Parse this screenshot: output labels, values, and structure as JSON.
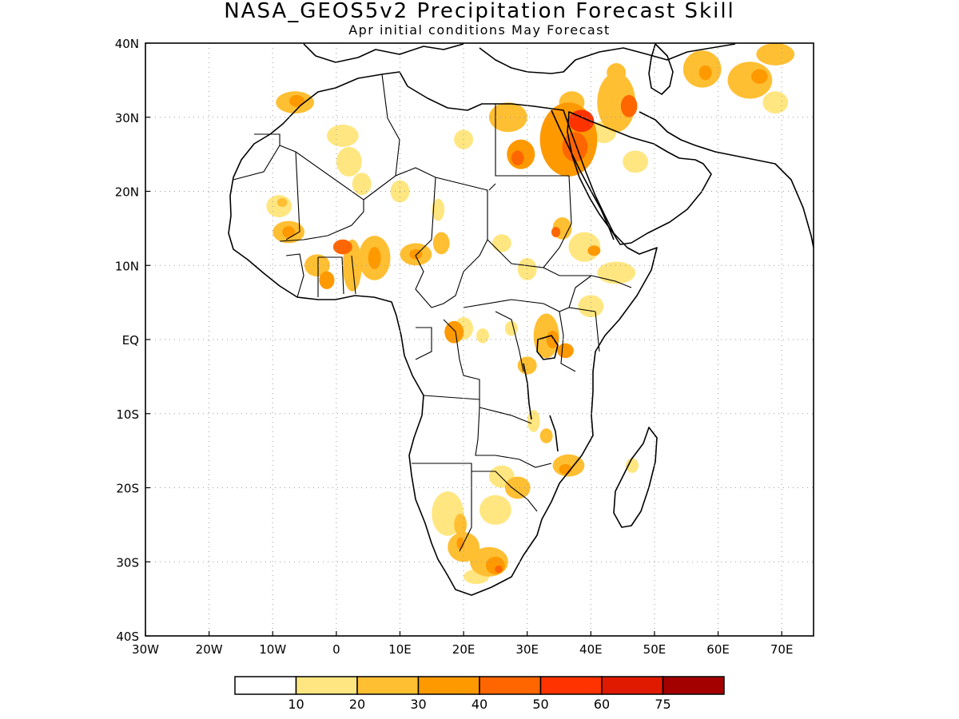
{
  "title": "NASA_GEOS5v2 Precipitation Forecast Skill",
  "subtitle": "Apr initial conditions   May Forecast",
  "map": {
    "lon_range": [
      -30,
      75
    ],
    "lat_range": [
      -40,
      40
    ],
    "x_ticks": [
      {
        "value": -30,
        "label": "30W"
      },
      {
        "value": -20,
        "label": "20W"
      },
      {
        "value": -10,
        "label": "10W"
      },
      {
        "value": 0,
        "label": "0"
      },
      {
        "value": 10,
        "label": "10E"
      },
      {
        "value": 20,
        "label": "20E"
      },
      {
        "value": 30,
        "label": "30E"
      },
      {
        "value": 40,
        "label": "40E"
      },
      {
        "value": 50,
        "label": "50E"
      },
      {
        "value": 60,
        "label": "60E"
      },
      {
        "value": 70,
        "label": "70E"
      }
    ],
    "y_ticks": [
      {
        "value": 40,
        "label": "40N"
      },
      {
        "value": 30,
        "label": "30N"
      },
      {
        "value": 20,
        "label": "20N"
      },
      {
        "value": 10,
        "label": "10N"
      },
      {
        "value": 0,
        "label": "EQ"
      },
      {
        "value": -10,
        "label": "10S"
      },
      {
        "value": -20,
        "label": "20S"
      },
      {
        "value": -30,
        "label": "30S"
      },
      {
        "value": -40,
        "label": "40S"
      }
    ],
    "grid": "dotted"
  },
  "colorbar": {
    "colors": [
      "#ffffff",
      "#ffe680",
      "#ffbf33",
      "#ff9900",
      "#ff6600",
      "#ff3300",
      "#e01a00",
      "#a30000"
    ],
    "labels": [
      "10",
      "20",
      "30",
      "40",
      "50",
      "60",
      "75"
    ]
  },
  "skill_blobs": [
    {
      "lon": 36.5,
      "lat": 27,
      "rx": 4.5,
      "ry": 5,
      "level": 3
    },
    {
      "lon": 38.5,
      "lat": 29.5,
      "rx": 2,
      "ry": 1.5,
      "level": 5
    },
    {
      "lon": 37.5,
      "lat": 26,
      "rx": 2,
      "ry": 2,
      "level": 4
    },
    {
      "lon": 29,
      "lat": 25,
      "rx": 2.2,
      "ry": 2,
      "level": 3
    },
    {
      "lon": 28.5,
      "lat": 24.5,
      "rx": 1,
      "ry": 1,
      "level": 4
    },
    {
      "lon": 27,
      "lat": 30,
      "rx": 3,
      "ry": 2,
      "level": 2
    },
    {
      "lon": 20,
      "lat": 27,
      "rx": 1.5,
      "ry": 1.3,
      "level": 1
    },
    {
      "lon": 37,
      "lat": 32,
      "rx": 2,
      "ry": 1.5,
      "level": 2
    },
    {
      "lon": 44,
      "lat": 32,
      "rx": 3,
      "ry": 4,
      "level": 2
    },
    {
      "lon": 46,
      "lat": 31.5,
      "rx": 1.3,
      "ry": 1.5,
      "level": 4
    },
    {
      "lon": 44,
      "lat": 36,
      "rx": 1.5,
      "ry": 1.3,
      "level": 2
    },
    {
      "lon": 42,
      "lat": 28,
      "rx": 2,
      "ry": 1.5,
      "level": 1
    },
    {
      "lon": 47,
      "lat": 24,
      "rx": 2,
      "ry": 1.5,
      "level": 1
    },
    {
      "lon": 57.5,
      "lat": 36.5,
      "rx": 3,
      "ry": 2.5,
      "level": 2
    },
    {
      "lon": 58,
      "lat": 36,
      "rx": 1,
      "ry": 1,
      "level": 3
    },
    {
      "lon": 65,
      "lat": 35,
      "rx": 3.5,
      "ry": 2.5,
      "level": 2
    },
    {
      "lon": 66.5,
      "lat": 35.5,
      "rx": 1.3,
      "ry": 1,
      "level": 3
    },
    {
      "lon": 69,
      "lat": 38.5,
      "rx": 3,
      "ry": 1.5,
      "level": 2
    },
    {
      "lon": 69,
      "lat": 32,
      "rx": 2,
      "ry": 1.5,
      "level": 1
    },
    {
      "lon": -6.5,
      "lat": 32,
      "rx": 3,
      "ry": 1.5,
      "level": 2
    },
    {
      "lon": -6.2,
      "lat": 32.2,
      "rx": 1.2,
      "ry": 0.8,
      "level": 3
    },
    {
      "lon": 1,
      "lat": 27.5,
      "rx": 2.5,
      "ry": 1.5,
      "level": 1
    },
    {
      "lon": 2,
      "lat": 24,
      "rx": 2,
      "ry": 2,
      "level": 1
    },
    {
      "lon": 4,
      "lat": 21,
      "rx": 1.5,
      "ry": 1.5,
      "level": 1
    },
    {
      "lon": -9,
      "lat": 18,
      "rx": 2,
      "ry": 1.5,
      "level": 1
    },
    {
      "lon": -8.5,
      "lat": 18.5,
      "rx": 0.8,
      "ry": 0.6,
      "level": 2
    },
    {
      "lon": -7.5,
      "lat": 14.5,
      "rx": 2.5,
      "ry": 1.5,
      "level": 2
    },
    {
      "lon": -7.5,
      "lat": 14.5,
      "rx": 1,
      "ry": 0.8,
      "level": 3
    },
    {
      "lon": -3,
      "lat": 10,
      "rx": 2,
      "ry": 1.5,
      "level": 2
    },
    {
      "lon": -1.5,
      "lat": 8,
      "rx": 1.2,
      "ry": 1.2,
      "level": 3
    },
    {
      "lon": 1,
      "lat": 12.5,
      "rx": 1.5,
      "ry": 1,
      "level": 4
    },
    {
      "lon": 2.5,
      "lat": 10,
      "rx": 1.5,
      "ry": 3.5,
      "level": 2
    },
    {
      "lon": 6,
      "lat": 11,
      "rx": 2.5,
      "ry": 3,
      "level": 2
    },
    {
      "lon": 6,
      "lat": 11,
      "rx": 1,
      "ry": 1.5,
      "level": 3
    },
    {
      "lon": 12.5,
      "lat": 11.5,
      "rx": 2.5,
      "ry": 1.5,
      "level": 2
    },
    {
      "lon": 12.5,
      "lat": 11.5,
      "rx": 1,
      "ry": 0.7,
      "level": 3
    },
    {
      "lon": 16.5,
      "lat": 13,
      "rx": 1.3,
      "ry": 1.5,
      "level": 2
    },
    {
      "lon": 16,
      "lat": 17.5,
      "rx": 1,
      "ry": 1.5,
      "level": 1
    },
    {
      "lon": 10,
      "lat": 20,
      "rx": 1.5,
      "ry": 1.5,
      "level": 1
    },
    {
      "lon": 26,
      "lat": 13,
      "rx": 1.5,
      "ry": 1.2,
      "level": 1
    },
    {
      "lon": 30,
      "lat": 9.5,
      "rx": 1.5,
      "ry": 1.5,
      "level": 1
    },
    {
      "lon": 35.5,
      "lat": 15,
      "rx": 1.5,
      "ry": 1.5,
      "level": 2
    },
    {
      "lon": 34.5,
      "lat": 14.5,
      "rx": 0.7,
      "ry": 0.7,
      "level": 4
    },
    {
      "lon": 39,
      "lat": 12.5,
      "rx": 2.5,
      "ry": 2,
      "level": 1
    },
    {
      "lon": 40.5,
      "lat": 12,
      "rx": 1,
      "ry": 0.7,
      "level": 3
    },
    {
      "lon": 44,
      "lat": 9,
      "rx": 3,
      "ry": 1.5,
      "level": 1
    },
    {
      "lon": 40,
      "lat": 4.5,
      "rx": 2,
      "ry": 1.5,
      "level": 1
    },
    {
      "lon": 33,
      "lat": 0.5,
      "rx": 2,
      "ry": 3,
      "level": 2
    },
    {
      "lon": 34,
      "lat": 0,
      "rx": 1,
      "ry": 1.2,
      "level": 3
    },
    {
      "lon": 36,
      "lat": -1.5,
      "rx": 1.3,
      "ry": 1,
      "level": 3
    },
    {
      "lon": 30,
      "lat": -3.5,
      "rx": 1.5,
      "ry": 1.2,
      "level": 2
    },
    {
      "lon": 18.5,
      "lat": 1,
      "rx": 1.5,
      "ry": 1.5,
      "level": 3
    },
    {
      "lon": 20,
      "lat": 1.5,
      "rx": 1.5,
      "ry": 1.5,
      "level": 1
    },
    {
      "lon": 23,
      "lat": 0.5,
      "rx": 1,
      "ry": 1,
      "level": 1
    },
    {
      "lon": 27.5,
      "lat": 1.5,
      "rx": 1,
      "ry": 1,
      "level": 1
    },
    {
      "lon": 31,
      "lat": -11,
      "rx": 1,
      "ry": 1.5,
      "level": 1
    },
    {
      "lon": 33,
      "lat": -13,
      "rx": 1,
      "ry": 1,
      "level": 2
    },
    {
      "lon": 36.5,
      "lat": -17,
      "rx": 2.5,
      "ry": 1.5,
      "level": 2
    },
    {
      "lon": 36,
      "lat": -17.5,
      "rx": 1,
      "ry": 0.7,
      "level": 3
    },
    {
      "lon": 26,
      "lat": -18.5,
      "rx": 2,
      "ry": 1.5,
      "level": 1
    },
    {
      "lon": 28.5,
      "lat": -20,
      "rx": 2,
      "ry": 1.5,
      "level": 2
    },
    {
      "lon": 25,
      "lat": -23,
      "rx": 2.5,
      "ry": 2,
      "level": 1
    },
    {
      "lon": 17.5,
      "lat": -23.5,
      "rx": 2.5,
      "ry": 3,
      "level": 1
    },
    {
      "lon": 19.5,
      "lat": -25,
      "rx": 1,
      "ry": 1.5,
      "level": 2
    },
    {
      "lon": 20,
      "lat": -28,
      "rx": 2.5,
      "ry": 2,
      "level": 2
    },
    {
      "lon": 19.5,
      "lat": -27.5,
      "rx": 0.6,
      "ry": 0.8,
      "level": 3
    },
    {
      "lon": 24,
      "lat": -30,
      "rx": 3,
      "ry": 2,
      "level": 2
    },
    {
      "lon": 25,
      "lat": -30.5,
      "rx": 1.5,
      "ry": 1.2,
      "level": 3
    },
    {
      "lon": 25.5,
      "lat": -31,
      "rx": 0.6,
      "ry": 0.5,
      "level": 4
    },
    {
      "lon": 22,
      "lat": -32,
      "rx": 2,
      "ry": 1,
      "level": 1
    },
    {
      "lon": 46.5,
      "lat": -17,
      "rx": 1,
      "ry": 1,
      "level": 1
    }
  ]
}
